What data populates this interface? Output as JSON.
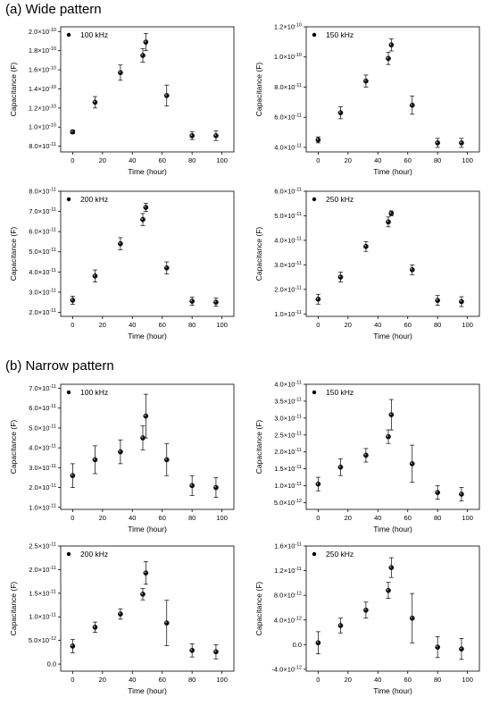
{
  "section_a_title": "(a) Wide pattern",
  "section_b_title": "(b) Narrow pattern",
  "chart_data": [
    {
      "type": "scatter",
      "section": "a",
      "series_name": "100 kHz",
      "xlabel": "Time (hour)",
      "ylabel": "Capacitance (F)",
      "xlim": [
        -8,
        108
      ],
      "ylim": [
        7.4e-11,
        2.05e-10
      ],
      "x_ticks": [
        0,
        20,
        40,
        60,
        80,
        100
      ],
      "y_ticks": [
        8e-11,
        1e-10,
        1.2e-10,
        1.4e-10,
        1.6e-10,
        1.8e-10,
        2e-10
      ],
      "y_tick_labels": [
        "8.0×10⁻¹¹",
        "1.0×10⁻¹⁰",
        "1.2×10⁻¹⁰",
        "1.4×10⁻¹⁰",
        "1.6×10⁻¹⁰",
        "1.8×10⁻¹⁰",
        "2.0×10⁻¹⁰"
      ],
      "x": [
        0,
        15,
        32,
        47,
        49,
        63,
        80,
        96
      ],
      "y": [
        9.5e-11,
        1.26e-10,
        1.57e-10,
        1.75e-10,
        1.89e-10,
        1.33e-10,
        9.1e-11,
        9.1e-11
      ],
      "err": [
        2e-12,
        6e-12,
        8e-12,
        7e-12,
        9e-12,
        1.1e-11,
        4e-12,
        5e-12
      ]
    },
    {
      "type": "scatter",
      "section": "a",
      "series_name": "150 kHz",
      "xlabel": "Time (hour)",
      "ylabel": "Capacitance (F)",
      "xlim": [
        -8,
        108
      ],
      "ylim": [
        3.7e-11,
        1.2e-10
      ],
      "x_ticks": [
        0,
        20,
        40,
        60,
        80,
        100
      ],
      "y_ticks": [
        4e-11,
        6e-11,
        8e-11,
        1e-10,
        1.2e-10
      ],
      "y_tick_labels": [
        "4.0×10⁻¹¹",
        "6.0×10⁻¹¹",
        "8.0×10⁻¹¹",
        "1.0×10⁻¹⁰",
        "1.2×10⁻¹⁰"
      ],
      "x": [
        0,
        15,
        32,
        47,
        49,
        63,
        80,
        96
      ],
      "y": [
        4.5e-11,
        6.3e-11,
        8.4e-11,
        9.9e-11,
        1.08e-10,
        6.8e-11,
        4.3e-11,
        4.3e-11
      ],
      "err": [
        2e-12,
        4e-12,
        4e-12,
        4e-12,
        4e-12,
        6e-12,
        3e-12,
        3e-12
      ]
    },
    {
      "type": "scatter",
      "section": "a",
      "series_name": "200 kHz",
      "xlabel": "Time (hour)",
      "ylabel": "Capacitance (F)",
      "xlim": [
        -8,
        108
      ],
      "ylim": [
        1.8e-11,
        8e-11
      ],
      "x_ticks": [
        0,
        20,
        40,
        60,
        80,
        100
      ],
      "y_ticks": [
        2e-11,
        3e-11,
        4e-11,
        5e-11,
        6e-11,
        7e-11,
        8e-11
      ],
      "y_tick_labels": [
        "2.0×10⁻¹¹",
        "3.0×10⁻¹¹",
        "4.0×10⁻¹¹",
        "5.0×10⁻¹¹",
        "6.0×10⁻¹¹",
        "7.0×10⁻¹¹",
        "8.0×10⁻¹¹"
      ],
      "x": [
        0,
        15,
        32,
        47,
        49,
        63,
        80,
        96
      ],
      "y": [
        2.6e-11,
        3.8e-11,
        5.4e-11,
        6.6e-11,
        7.2e-11,
        4.2e-11,
        2.55e-11,
        2.5e-11
      ],
      "err": [
        2e-12,
        3e-12,
        3e-12,
        3e-12,
        2e-12,
        3e-12,
        2e-12,
        2e-12
      ]
    },
    {
      "type": "scatter",
      "section": "a",
      "series_name": "250 kHz",
      "xlabel": "Time (hour)",
      "ylabel": "Capacitance (F)",
      "xlim": [
        -8,
        108
      ],
      "ylim": [
        9e-12,
        6e-11
      ],
      "x_ticks": [
        0,
        20,
        40,
        60,
        80,
        100
      ],
      "y_ticks": [
        1e-11,
        2e-11,
        3e-11,
        4e-11,
        5e-11,
        6e-11
      ],
      "y_tick_labels": [
        "1.0×10⁻¹¹",
        "2.0×10⁻¹¹",
        "3.0×10⁻¹¹",
        "4.0×10⁻¹¹",
        "5.0×10⁻¹¹",
        "6.0×10⁻¹¹"
      ],
      "x": [
        0,
        15,
        32,
        47,
        49,
        63,
        80,
        96
      ],
      "y": [
        1.6e-11,
        2.5e-11,
        3.75e-11,
        4.75e-11,
        5.1e-11,
        2.8e-11,
        1.55e-11,
        1.5e-11
      ],
      "err": [
        2e-12,
        2e-12,
        2e-12,
        2e-12,
        1e-12,
        2e-12,
        2e-12,
        2e-12
      ]
    },
    {
      "type": "scatter",
      "section": "b",
      "series_name": "100 kHz",
      "xlabel": "Time (hour)",
      "ylabel": "Capacitance (F)",
      "xlim": [
        -8,
        108
      ],
      "ylim": [
        9e-12,
        7.2e-11
      ],
      "x_ticks": [
        0,
        20,
        40,
        60,
        80,
        100
      ],
      "y_ticks": [
        1e-11,
        2e-11,
        3e-11,
        4e-11,
        5e-11,
        6e-11,
        7e-11
      ],
      "y_tick_labels": [
        "1.0×10⁻¹¹",
        "2.0×10⁻¹¹",
        "3.0×10⁻¹¹",
        "4.0×10⁻¹¹",
        "5.0×10⁻¹¹",
        "6.0×10⁻¹¹",
        "7.0×10⁻¹¹"
      ],
      "x": [
        0,
        15,
        32,
        47,
        49,
        63,
        80,
        96
      ],
      "y": [
        2.6e-11,
        3.4e-11,
        3.8e-11,
        4.5e-11,
        5.6e-11,
        3.4e-11,
        2.1e-11,
        2e-11
      ],
      "err": [
        6e-12,
        7e-12,
        6e-12,
        6e-12,
        1.1e-11,
        8e-12,
        5e-12,
        5e-12
      ]
    },
    {
      "type": "scatter",
      "section": "b",
      "series_name": "150 kHz",
      "xlabel": "Time (hour)",
      "ylabel": "Capacitance (F)",
      "xlim": [
        -8,
        108
      ],
      "ylim": [
        3e-12,
        4e-11
      ],
      "x_ticks": [
        0,
        20,
        40,
        60,
        80,
        100
      ],
      "y_ticks": [
        5e-12,
        1e-11,
        1.5e-11,
        2e-11,
        2.5e-11,
        3e-11,
        3.5e-11,
        4e-11
      ],
      "y_tick_labels": [
        "5.0×10⁻¹²",
        "1.0×10⁻¹¹",
        "1.5×10⁻¹¹",
        "2.0×10⁻¹¹",
        "2.5×10⁻¹¹",
        "3.0×10⁻¹¹",
        "3.5×10⁻¹¹",
        "4.0×10⁻¹¹"
      ],
      "x": [
        0,
        15,
        32,
        47,
        49,
        63,
        80,
        96
      ],
      "y": [
        1.05e-11,
        1.55e-11,
        1.9e-11,
        2.45e-11,
        3.1e-11,
        1.65e-11,
        8e-12,
        7.5e-12
      ],
      "err": [
        2e-12,
        2.5e-12,
        2e-12,
        2e-12,
        4.5e-12,
        5.5e-12,
        2e-12,
        2e-12
      ]
    },
    {
      "type": "scatter",
      "section": "b",
      "series_name": "200 kHz",
      "xlabel": "Time (hour)",
      "ylabel": "Capacitance (F)",
      "xlim": [
        -8,
        108
      ],
      "ylim": [
        -1.5e-12,
        2.5e-11
      ],
      "x_ticks": [
        0,
        20,
        40,
        60,
        80,
        100
      ],
      "y_ticks": [
        0,
        5e-12,
        1e-11,
        1.5e-11,
        2e-11,
        2.5e-11
      ],
      "y_tick_labels": [
        "0.0",
        "5.0×10⁻¹²",
        "1.0×10⁻¹¹",
        "1.5×10⁻¹¹",
        "2.0×10⁻¹¹",
        "2.5×10⁻¹¹"
      ],
      "x": [
        0,
        15,
        32,
        47,
        49,
        63,
        80,
        96
      ],
      "y": [
        3.8e-12,
        7.8e-12,
        1.06e-11,
        1.48e-11,
        1.93e-11,
        8.7e-12,
        2.9e-12,
        2.6e-12
      ],
      "err": [
        1.4e-12,
        1.1e-12,
        1.1e-12,
        1.2e-12,
        2.4e-12,
        4.8e-12,
        1.4e-12,
        1.5e-12
      ]
    },
    {
      "type": "scatter",
      "section": "b",
      "series_name": "250 kHz",
      "xlabel": "Time (hour)",
      "ylabel": "Capacitance (F)",
      "xlim": [
        -8,
        108
      ],
      "ylim": [
        -4.3e-12,
        1.6e-11
      ],
      "x_ticks": [
        0,
        20,
        40,
        60,
        80,
        100
      ],
      "y_ticks": [
        -4e-12,
        0,
        4e-12,
        8e-12,
        1.2e-11,
        1.6e-11
      ],
      "y_tick_labels": [
        "-4.0×10⁻¹²",
        "0.0",
        "4.0×10⁻¹²",
        "8.0×10⁻¹²",
        "1.2×10⁻¹¹",
        "1.6×10⁻¹¹"
      ],
      "x": [
        0,
        15,
        32,
        47,
        49,
        63,
        80,
        96
      ],
      "y": [
        3e-13,
        3.1e-12,
        5.6e-12,
        8.8e-12,
        1.25e-11,
        4.3e-12,
        -4e-13,
        -7e-13
      ],
      "err": [
        1.8e-12,
        1.2e-12,
        1.3e-12,
        1.3e-12,
        1.6e-12,
        4e-12,
        1.7e-12,
        1.7e-12
      ]
    }
  ]
}
